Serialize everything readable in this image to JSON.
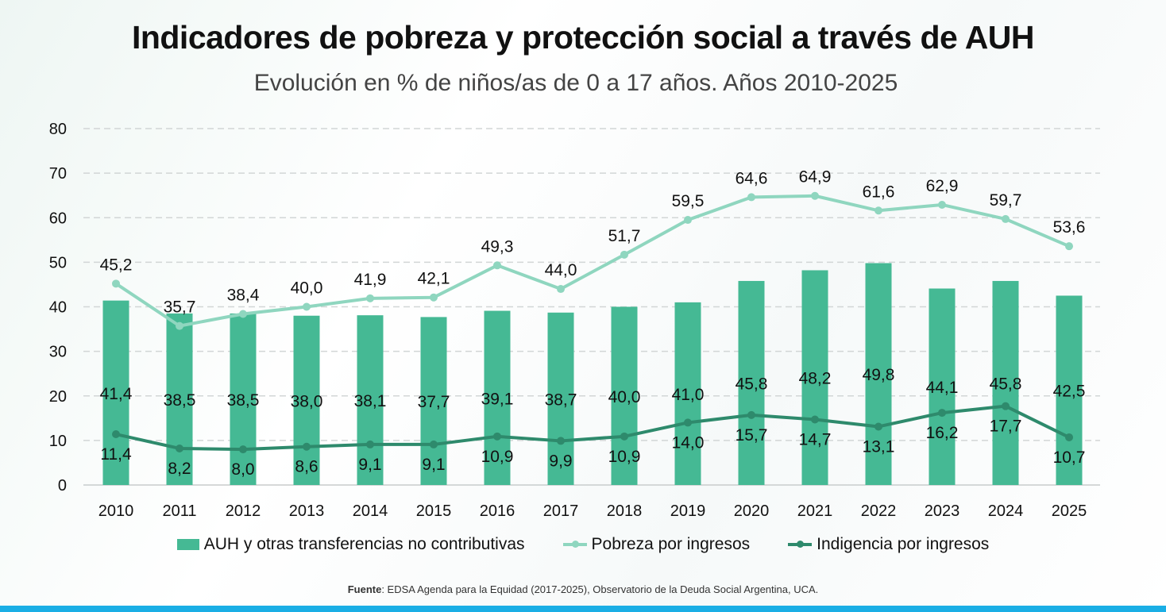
{
  "title": "Indicadores de pobreza y protección social a través de AUH",
  "subtitle": "Evolución en % de niños/as de 0 a 17 años. Años 2010-2025",
  "source": {
    "label": "Fuente",
    "text": ": EDSA Agenda para la Equidad (2017-2025), Observatorio de la Deuda Social Argentina, UCA."
  },
  "chart_data": {
    "type": "bar+line",
    "categories": [
      "2010",
      "2011",
      "2012",
      "2013",
      "2014",
      "2015",
      "2016",
      "2017",
      "2018",
      "2019",
      "2020",
      "2021",
      "2022",
      "2023",
      "2024",
      "2025"
    ],
    "ylim": [
      0,
      80
    ],
    "yticks": [
      0,
      10,
      20,
      30,
      40,
      50,
      60,
      70,
      80
    ],
    "grid": true,
    "legend_position": "bottom",
    "series": [
      {
        "name": "AUH y otras transferencias no contributivas",
        "type": "bar",
        "color": "#45b994",
        "values": [
          41.4,
          38.5,
          38.5,
          38.0,
          38.1,
          37.7,
          39.1,
          38.7,
          40.0,
          41.0,
          45.8,
          48.2,
          49.8,
          44.1,
          45.8,
          42.5
        ],
        "labels": [
          "41,4",
          "38,5",
          "38,5",
          "38,0",
          "38,1",
          "37,7",
          "39,1",
          "38,7",
          "40,0",
          "41,0",
          "45,8",
          "48,2",
          "49,8",
          "44,1",
          "45,8",
          "42,5"
        ]
      },
      {
        "name": "Pobreza por ingresos",
        "type": "line",
        "color": "#8fd6bf",
        "values": [
          45.2,
          35.7,
          38.4,
          40.0,
          41.9,
          42.1,
          49.3,
          44.0,
          51.7,
          59.5,
          64.6,
          64.9,
          61.6,
          62.9,
          59.7,
          53.6
        ],
        "labels": [
          "45,2",
          "35,7",
          "38,4",
          "40,0",
          "41,9",
          "42,1",
          "49,3",
          "44,0",
          "51,7",
          "59,5",
          "64,6",
          "64,9",
          "61,6",
          "62,9",
          "59,7",
          "53,6"
        ]
      },
      {
        "name": "Indigencia por ingresos",
        "type": "line",
        "color": "#2e8a6c",
        "values": [
          11.4,
          8.2,
          8.0,
          8.6,
          9.1,
          9.1,
          10.9,
          9.9,
          10.9,
          14.0,
          15.7,
          14.7,
          13.1,
          16.2,
          17.7,
          10.7
        ],
        "labels": [
          "11,4",
          "8,2",
          "8,0",
          "8,6",
          "9,1",
          "9,1",
          "10,9",
          "9,9",
          "10,9",
          "14,0",
          "15,7",
          "14,7",
          "13,1",
          "16,2",
          "17,7",
          "10,7"
        ]
      }
    ]
  }
}
